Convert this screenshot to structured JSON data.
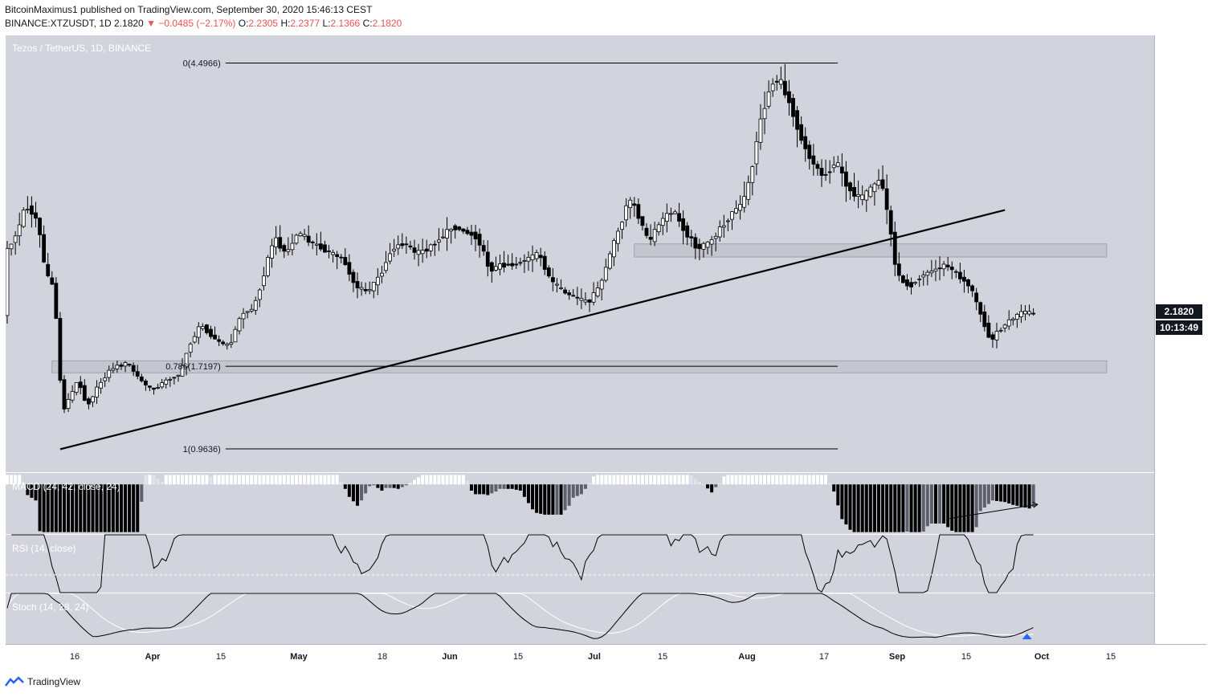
{
  "header": {
    "publisher": "BitcoinMaximus1",
    "published_text": "published on TradingView.com, September 30, 2020 15:46:13 CEST",
    "symbol": "BINANCE:XTZUSDT, 1D",
    "last": "2.1820",
    "change": "−0.0485 (−2.17%)",
    "o_label": "O:",
    "o_value": "2.2305",
    "h_label": "H:",
    "h_value": "2.2377",
    "l_label": "L:",
    "l_value": "2.1366",
    "c_label": "C:",
    "c_value": "2.1820"
  },
  "footer": {
    "brand": "TradingView"
  },
  "colors": {
    "pane_bg": "#d1d4dc",
    "candle": "#000000",
    "candle_up": "#ffffff",
    "price_tag": "#131722",
    "stoch_signal": "#ffffff",
    "arrow_up": "#2962ff"
  },
  "chart_data": {
    "type": "candlestick",
    "title": "Tezos / TetherUS, 1D, BINANCE",
    "currency": "USDT",
    "ylim": [
      0.75,
      4.75
    ],
    "y_ticks": [
      "1.0000",
      "1.5000",
      "2.0000",
      "2.5000",
      "3.0000",
      "3.5000",
      "4.0000",
      "4.5000"
    ],
    "x_ticks": [
      "16",
      "Apr",
      "15",
      "May",
      "18",
      "Jun",
      "15",
      "Jul",
      "15",
      "Aug",
      "17",
      "Sep",
      "15",
      "Oct",
      "15"
    ],
    "last_price": "2.1820",
    "countdown": "10:13:49",
    "candles_note": "daily OHLC approximated from price path",
    "price_path": [
      [
        0,
        2.75
      ],
      [
        3,
        2.95
      ],
      [
        5,
        3.2
      ],
      [
        8,
        3.05
      ],
      [
        10,
        2.55
      ],
      [
        12,
        2.45
      ],
      [
        14,
        1.3
      ],
      [
        16,
        1.45
      ],
      [
        18,
        1.6
      ],
      [
        20,
        1.35
      ],
      [
        23,
        1.55
      ],
      [
        26,
        1.7
      ],
      [
        30,
        1.75
      ],
      [
        33,
        1.6
      ],
      [
        36,
        1.5
      ],
      [
        40,
        1.6
      ],
      [
        43,
        1.65
      ],
      [
        45,
        1.9
      ],
      [
        48,
        2.1
      ],
      [
        52,
        1.95
      ],
      [
        55,
        1.9
      ],
      [
        58,
        2.2
      ],
      [
        61,
        2.25
      ],
      [
        63,
        2.5
      ],
      [
        66,
        2.9
      ],
      [
        69,
        2.75
      ],
      [
        72,
        2.95
      ],
      [
        75,
        2.85
      ],
      [
        78,
        2.8
      ],
      [
        80,
        2.75
      ],
      [
        83,
        2.7
      ],
      [
        86,
        2.45
      ],
      [
        89,
        2.4
      ],
      [
        92,
        2.55
      ],
      [
        95,
        2.8
      ],
      [
        98,
        2.85
      ],
      [
        101,
        2.75
      ],
      [
        104,
        2.8
      ],
      [
        107,
        2.9
      ],
      [
        110,
        3.0
      ],
      [
        113,
        2.95
      ],
      [
        116,
        2.9
      ],
      [
        119,
        2.6
      ],
      [
        122,
        2.65
      ],
      [
        125,
        2.65
      ],
      [
        128,
        2.7
      ],
      [
        131,
        2.75
      ],
      [
        134,
        2.5
      ],
      [
        137,
        2.4
      ],
      [
        140,
        2.35
      ],
      [
        143,
        2.3
      ],
      [
        146,
        2.45
      ],
      [
        149,
        2.8
      ],
      [
        151,
        3.0
      ],
      [
        153,
        3.25
      ],
      [
        155,
        3.15
      ],
      [
        158,
        2.85
      ],
      [
        161,
        3.05
      ],
      [
        164,
        3.15
      ],
      [
        167,
        2.95
      ],
      [
        170,
        2.8
      ],
      [
        173,
        2.85
      ],
      [
        176,
        3.0
      ],
      [
        179,
        3.15
      ],
      [
        181,
        3.2
      ],
      [
        183,
        3.45
      ],
      [
        185,
        3.9
      ],
      [
        188,
        4.3
      ],
      [
        190,
        4.35
      ],
      [
        193,
        4.1
      ],
      [
        195,
        3.85
      ],
      [
        198,
        3.6
      ],
      [
        201,
        3.45
      ],
      [
        204,
        3.6
      ],
      [
        207,
        3.35
      ],
      [
        210,
        3.25
      ],
      [
        213,
        3.35
      ],
      [
        215,
        3.45
      ],
      [
        217,
        3.05
      ],
      [
        219,
        2.55
      ],
      [
        222,
        2.45
      ],
      [
        225,
        2.55
      ],
      [
        228,
        2.6
      ],
      [
        231,
        2.65
      ],
      [
        234,
        2.55
      ],
      [
        237,
        2.45
      ],
      [
        240,
        2.15
      ],
      [
        242,
        1.95
      ],
      [
        244,
        2.05
      ],
      [
        247,
        2.15
      ],
      [
        250,
        2.22
      ],
      [
        252,
        2.2
      ]
    ],
    "trendline": {
      "from": [
        13,
        0.96
      ],
      "to": [
        245,
        3.15
      ]
    },
    "fibonacci": [
      {
        "label": "0(4.4966)",
        "value": 4.4966
      },
      {
        "label": "0.786(1.7197)",
        "value": 1.7197
      },
      {
        "label": "1(0.9636)",
        "value": 0.9636
      }
    ],
    "fib_range": [
      11,
      201
    ],
    "zones": [
      {
        "low": 2.72,
        "high": 2.84,
        "from": 154,
        "to": 270
      },
      {
        "low": 1.66,
        "high": 1.77,
        "from": 11,
        "to": 270
      }
    ],
    "macd": {
      "label": "MACD (24, 42, close, 24)",
      "ylim": [
        -0.26,
        0.06
      ],
      "y_ticks": [
        "0.0000",
        "−0.2000"
      ]
    },
    "rsi": {
      "label": "RSI (14, close)",
      "ylim": [
        22,
        48
      ],
      "y_ticks": [
        "40.00",
        "30.00"
      ]
    },
    "stoch": {
      "label": "Stoch (14, 28, 24)",
      "ylim": [
        -4,
        44
      ],
      "y_ticks": [
        "40.00",
        "0.00"
      ]
    }
  }
}
